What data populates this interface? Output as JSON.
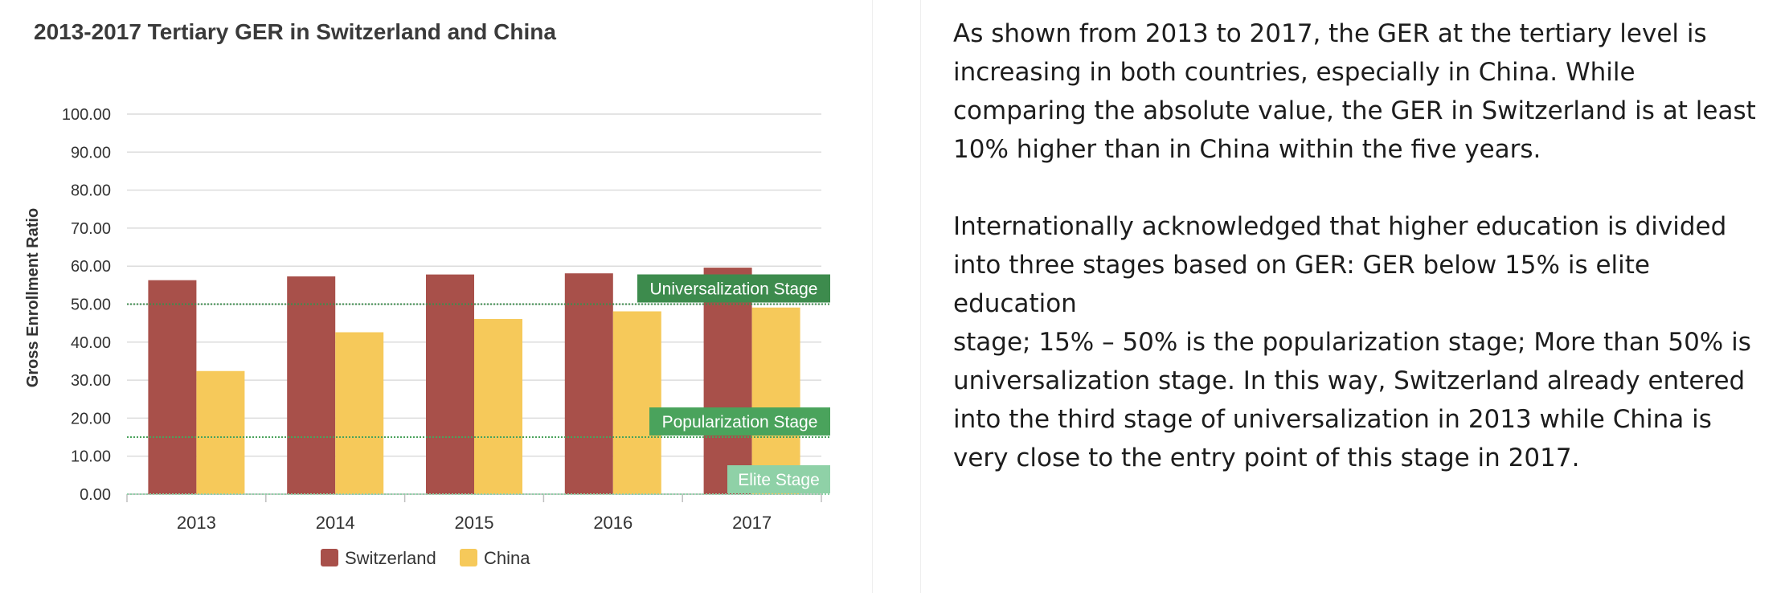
{
  "chart_data": {
    "type": "bar",
    "title": "2013-2017 Tertiary GER in Switzerland and China",
    "xlabel": "",
    "ylabel": "Gross Enrollment Ratio",
    "categories": [
      "2013",
      "2014",
      "2015",
      "2016",
      "2017"
    ],
    "series": [
      {
        "name": "Switzerland",
        "color": "#a8504a",
        "values": [
          56.3,
          57.3,
          57.8,
          58.1,
          59.6
        ]
      },
      {
        "name": "China",
        "color": "#f6c95a",
        "values": [
          32.4,
          42.6,
          46.1,
          48.1,
          49.1
        ]
      }
    ],
    "ylim": [
      0,
      100
    ],
    "yticks": [
      "0.00",
      "10.00",
      "20.00",
      "30.00",
      "40.00",
      "50.00",
      "60.00",
      "70.00",
      "80.00",
      "90.00",
      "100.00"
    ],
    "grid": true,
    "legend_position": "bottom",
    "reference_lines": [
      {
        "label": "Universalization Stage",
        "value": 50,
        "color": "#3d8b4d"
      },
      {
        "label": "Popularization Stage",
        "value": 15,
        "color": "#4aa35c"
      },
      {
        "label": "Elite Stage",
        "value": 0,
        "color": "#8fd1a7"
      }
    ]
  },
  "text": {
    "paragraphs": [
      [
        "As shown from 2013 to 2017, the GER at the tertiary level is",
        "increasing in both countries, especially in China. While",
        "comparing the absolute value, the GER in Switzerland is at least",
        "10% higher than in China within the five years."
      ],
      [
        "Internationally acknowledged that higher education is divided",
        "into three stages based on GER: GER below 15% is elite education",
        "stage; 15% – 50% is the popularization stage; More than 50% is",
        "universalization stage. In this way, Switzerland already entered",
        "into the third stage of universalization in 2013 while China is",
        "very close to the entry point of this stage in 2017."
      ]
    ]
  }
}
